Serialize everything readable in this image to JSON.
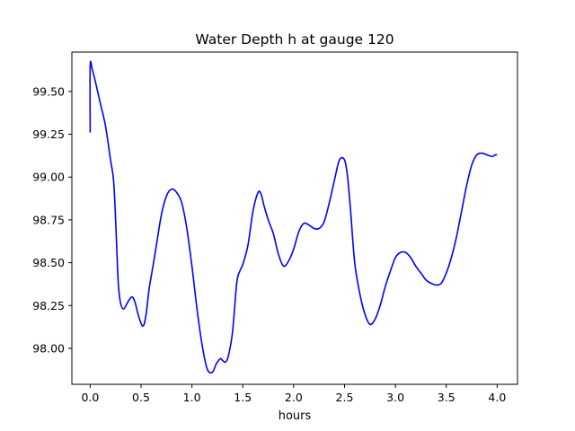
{
  "chart_data": {
    "type": "line",
    "title": "Water Depth h at gauge 120",
    "xlabel": "hours",
    "ylabel": "",
    "xlim": [
      -0.18,
      4.2
    ],
    "ylim": [
      97.79,
      99.73
    ],
    "xticks": [
      0.0,
      0.5,
      1.0,
      1.5,
      2.0,
      2.5,
      3.0,
      3.5,
      4.0
    ],
    "xtick_labels": [
      "0.0",
      "0.5",
      "1.0",
      "1.5",
      "2.0",
      "2.5",
      "3.0",
      "3.5",
      "4.0"
    ],
    "yticks": [
      98.0,
      98.25,
      98.5,
      98.75,
      99.0,
      99.25,
      99.5
    ],
    "ytick_labels": [
      "98.00",
      "98.25",
      "98.50",
      "98.75",
      "99.00",
      "99.25",
      "99.50"
    ],
    "grid": false,
    "series": [
      {
        "color": "#0000ff",
        "x": [
          0.0,
          0.0,
          0.02,
          0.05,
          0.1,
          0.15,
          0.2,
          0.23,
          0.25,
          0.27,
          0.28,
          0.3,
          0.33,
          0.37,
          0.41,
          0.44,
          0.48,
          0.52,
          0.55,
          0.58,
          0.62,
          0.65,
          0.7,
          0.75,
          0.8,
          0.85,
          0.9,
          0.95,
          1.0,
          1.05,
          1.1,
          1.15,
          1.2,
          1.24,
          1.28,
          1.3,
          1.33,
          1.36,
          1.4,
          1.44,
          1.47,
          1.5,
          1.55,
          1.6,
          1.65,
          1.68,
          1.71,
          1.75,
          1.8,
          1.85,
          1.9,
          1.95,
          2.0,
          2.05,
          2.1,
          2.15,
          2.2,
          2.25,
          2.3,
          2.35,
          2.4,
          2.45,
          2.5,
          2.53,
          2.56,
          2.6,
          2.65,
          2.7,
          2.75,
          2.8,
          2.85,
          2.9,
          2.95,
          3.0,
          3.05,
          3.1,
          3.15,
          3.2,
          3.25,
          3.3,
          3.35,
          3.4,
          3.45,
          3.5,
          3.55,
          3.6,
          3.65,
          3.7,
          3.75,
          3.8,
          3.85,
          3.9,
          3.95,
          3.98,
          4.0
        ],
        "y": [
          99.26,
          99.65,
          99.63,
          99.56,
          99.43,
          99.3,
          99.1,
          98.98,
          98.75,
          98.45,
          98.35,
          98.26,
          98.23,
          98.27,
          98.3,
          98.27,
          98.18,
          98.13,
          98.2,
          98.35,
          98.49,
          98.6,
          98.78,
          98.89,
          98.93,
          98.91,
          98.85,
          98.7,
          98.48,
          98.23,
          98.02,
          97.88,
          97.86,
          97.91,
          97.94,
          97.93,
          97.92,
          97.96,
          98.1,
          98.38,
          98.45,
          98.49,
          98.6,
          98.8,
          98.91,
          98.9,
          98.83,
          98.75,
          98.67,
          98.55,
          98.48,
          98.51,
          98.58,
          98.68,
          98.73,
          98.72,
          98.7,
          98.7,
          98.74,
          98.85,
          98.98,
          99.1,
          99.1,
          99.0,
          98.8,
          98.5,
          98.32,
          98.2,
          98.14,
          98.17,
          98.25,
          98.36,
          98.45,
          98.53,
          98.56,
          98.56,
          98.53,
          98.48,
          98.44,
          98.4,
          98.38,
          98.37,
          98.38,
          98.44,
          98.53,
          98.65,
          98.8,
          98.95,
          99.07,
          99.13,
          99.14,
          99.13,
          99.12,
          99.13,
          99.13
        ]
      }
    ]
  }
}
